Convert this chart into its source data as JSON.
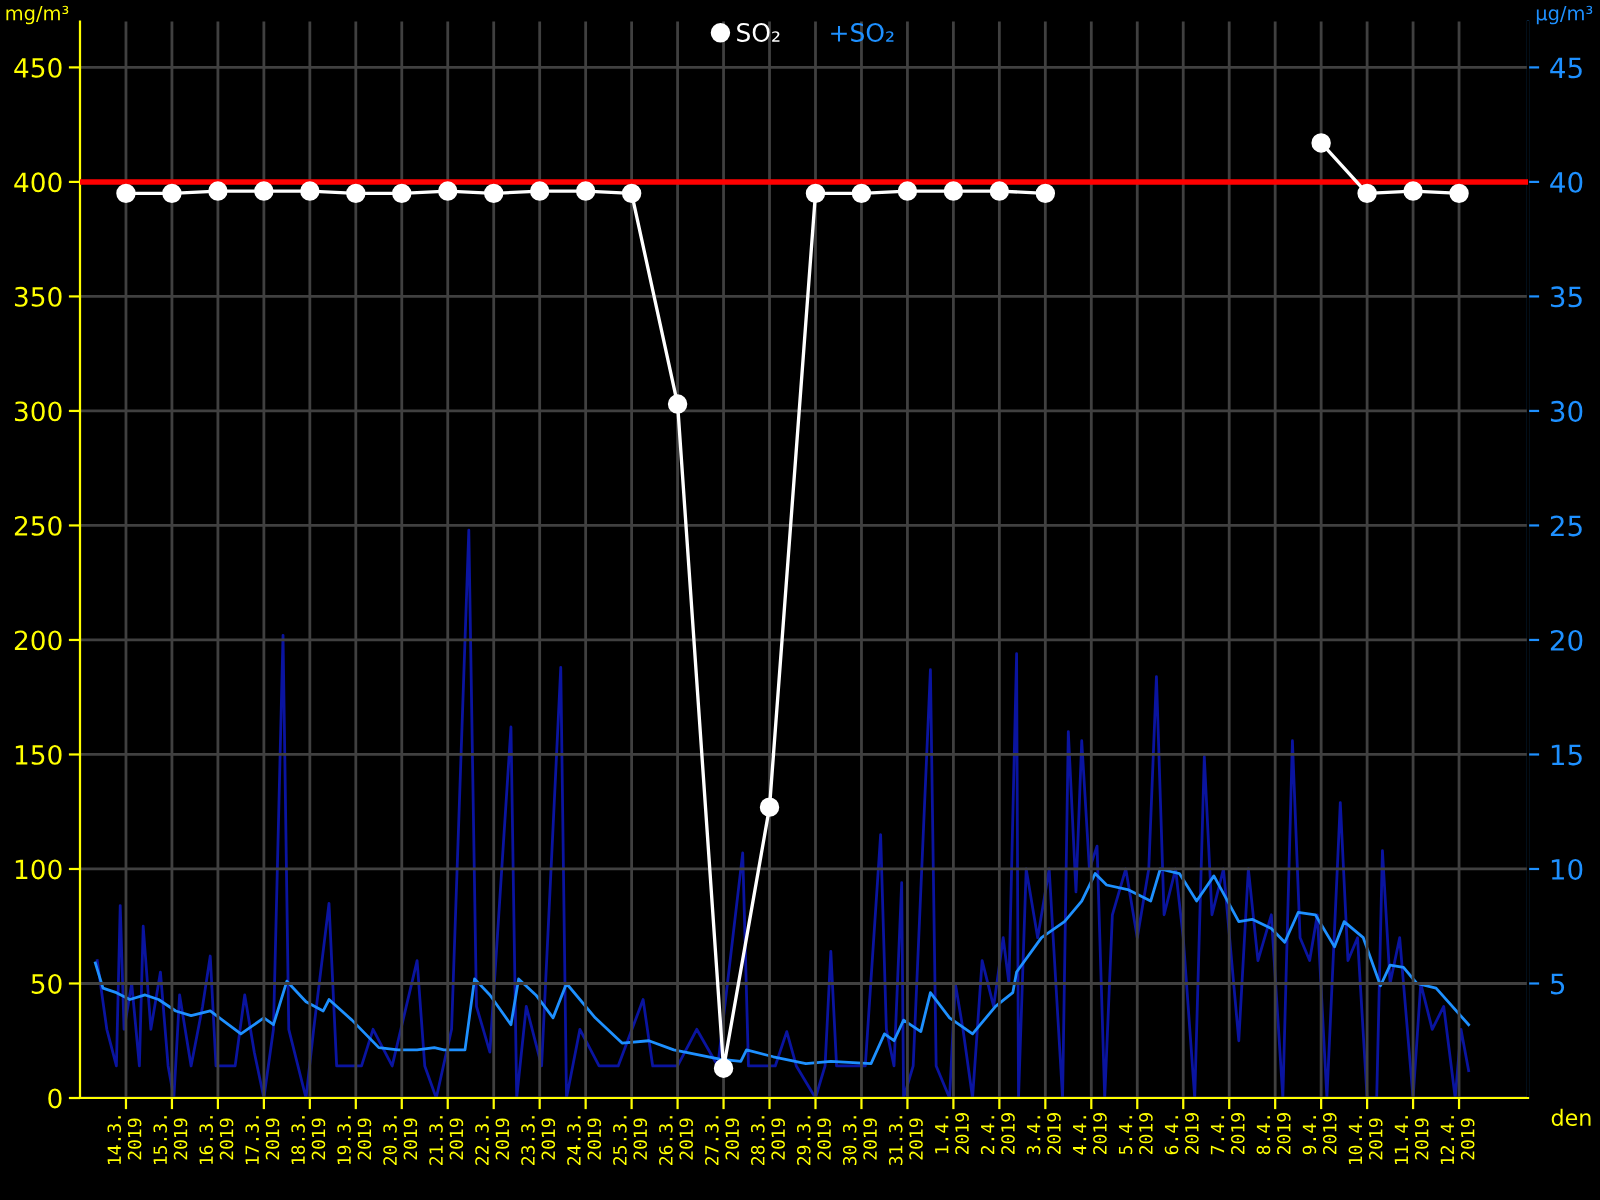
{
  "chart_data": {
    "type": "line",
    "ylabel": "mg/m³",
    "y2label": "µg/m³",
    "xlabel": "den",
    "xlim": [
      "2019-03-13T00:00",
      "2019-04-13T12:00"
    ],
    "ylim": [
      0,
      470
    ],
    "y2lim": [
      0,
      47
    ],
    "yticks": [
      0,
      50,
      100,
      150,
      200,
      250,
      300,
      350,
      400,
      450
    ],
    "y2ticks": [
      5,
      10,
      15,
      20,
      25,
      30,
      35,
      40,
      45
    ],
    "xticks": [
      {
        "value": "2019-03-14",
        "label": "14.3.\n2019"
      },
      {
        "value": "2019-03-15",
        "label": "15.3.\n2019"
      },
      {
        "value": "2019-03-16",
        "label": "16.3.\n2019"
      },
      {
        "value": "2019-03-17",
        "label": "17.3.\n2019"
      },
      {
        "value": "2019-03-18",
        "label": "18.3.\n2019"
      },
      {
        "value": "2019-03-19",
        "label": "19.3.\n2019"
      },
      {
        "value": "2019-03-20",
        "label": "20.3.\n2019"
      },
      {
        "value": "2019-03-21",
        "label": "21.3.\n2019"
      },
      {
        "value": "2019-03-22",
        "label": "22.3.\n2019"
      },
      {
        "value": "2019-03-23",
        "label": "23.3.\n2019"
      },
      {
        "value": "2019-03-24",
        "label": "24.3.\n2019"
      },
      {
        "value": "2019-03-25",
        "label": "25.3.\n2019"
      },
      {
        "value": "2019-03-26",
        "label": "26.3.\n2019"
      },
      {
        "value": "2019-03-27",
        "label": "27.3.\n2019"
      },
      {
        "value": "2019-03-28",
        "label": "28.3.\n2019"
      },
      {
        "value": "2019-03-29",
        "label": "29.3.\n2019"
      },
      {
        "value": "2019-03-30",
        "label": "30.3.\n2019"
      },
      {
        "value": "2019-03-31",
        "label": "31.3.\n2019"
      },
      {
        "value": "2019-04-01",
        "label": "1.4.\n2019"
      },
      {
        "value": "2019-04-02",
        "label": "2.4.\n2019"
      },
      {
        "value": "2019-04-03",
        "label": "3.4.\n2019"
      },
      {
        "value": "2019-04-04",
        "label": "4.4.\n2019"
      },
      {
        "value": "2019-04-05",
        "label": "5.4.\n2019"
      },
      {
        "value": "2019-04-06",
        "label": "6.4.\n2019"
      },
      {
        "value": "2019-04-07",
        "label": "7.4.\n2019"
      },
      {
        "value": "2019-04-08",
        "label": "8.4.\n2019"
      },
      {
        "value": "2019-04-09",
        "label": "9.4.\n2019"
      },
      {
        "value": "2019-04-10",
        "label": "10.4.\n2019"
      },
      {
        "value": "2019-04-11",
        "label": "11.4.\n2019"
      },
      {
        "value": "2019-04-12",
        "label": "12.4.\n2019"
      }
    ],
    "grid": true,
    "legend": "top",
    "line_style": "solid",
    "ref_lines": [
      {
        "axis": "y",
        "value": 400,
        "label": null,
        "color": "#ff0000"
      }
    ],
    "series": [
      {
        "color": "#0a14a0",
        "axis": "y2",
        "marker": "none",
        "x": [
          "2019-03-13T09:00",
          "2019-03-13T14:00",
          "2019-03-13T19:00",
          "2019-03-13T21:00",
          "2019-03-13T23:00",
          "2019-03-14T03:00",
          "2019-03-14T07:00",
          "2019-03-14T09:00",
          "2019-03-14T13:00",
          "2019-03-14T18:00",
          "2019-03-14T22:00",
          "2019-03-15T01:00",
          "2019-03-15T04:00",
          "2019-03-15T10:00",
          "2019-03-15T16:00",
          "2019-03-15T20:00",
          "2019-03-15T23:00",
          "2019-03-16T09:00",
          "2019-03-16T14:00",
          "2019-03-16T19:00",
          "2019-03-17T00:00",
          "2019-03-17T05:00",
          "2019-03-17T10:00",
          "2019-03-17T13:00",
          "2019-03-17T22:00",
          "2019-03-18T02:00",
          "2019-03-18T10:00",
          "2019-03-18T14:00",
          "2019-03-19T03:00",
          "2019-03-19T09:00",
          "2019-03-19T19:00",
          "2019-03-20T08:00",
          "2019-03-20T12:00",
          "2019-03-20T18:00",
          "2019-03-21T02:00",
          "2019-03-21T11:00",
          "2019-03-21T15:00",
          "2019-03-21T22:00",
          "2019-03-22T09:00",
          "2019-03-22T12:00",
          "2019-03-22T17:00",
          "2019-03-23T01:00",
          "2019-03-23T11:00",
          "2019-03-23T14:00",
          "2019-03-23T21:00",
          "2019-03-24T07:00",
          "2019-03-24T17:00",
          "2019-03-25T06:00",
          "2019-03-25T11:00",
          "2019-03-26T00:00",
          "2019-03-26T10:00",
          "2019-03-26T21:00",
          "2019-03-27T10:00",
          "2019-03-27T13:00",
          "2019-03-28T03:00",
          "2019-03-28T09:00",
          "2019-03-28T14:00",
          "2019-03-29T00:00",
          "2019-03-29T05:00",
          "2019-03-29T08:00",
          "2019-03-29T11:00",
          "2019-03-30T02:00",
          "2019-03-30T10:00",
          "2019-03-30T13:00",
          "2019-03-30T17:00",
          "2019-03-30T21:00",
          "2019-03-30T22:00",
          "2019-03-31T03:00",
          "2019-03-31T12:00",
          "2019-03-31T15:00",
          "2019-03-31T22:00",
          "2019-04-01T01:00",
          "2019-04-01T05:00",
          "2019-04-01T10:00",
          "2019-04-01T15:00",
          "2019-04-01T21:00",
          "2019-04-02T02:00",
          "2019-04-02T05:00",
          "2019-04-02T09:00",
          "2019-04-02T10:00",
          "2019-04-02T14:00",
          "2019-04-02T20:00",
          "2019-04-03T02:00",
          "2019-04-03T09:00",
          "2019-04-03T12:00",
          "2019-04-03T16:00",
          "2019-04-03T19:00",
          "2019-04-03T23:00",
          "2019-04-04T03:00",
          "2019-04-04T07:00",
          "2019-04-04T11:00",
          "2019-04-04T18:00",
          "2019-04-05T00:00",
          "2019-04-05T06:00",
          "2019-04-05T10:00",
          "2019-04-05T14:00",
          "2019-04-05T20:00",
          "2019-04-06T00:00",
          "2019-04-06T06:00",
          "2019-04-06T11:00",
          "2019-04-06T15:00",
          "2019-04-06T21:00",
          "2019-04-07T05:00",
          "2019-04-07T10:00",
          "2019-04-07T15:00",
          "2019-04-07T22:00",
          "2019-04-08T04:00",
          "2019-04-08T09:00",
          "2019-04-08T13:00",
          "2019-04-08T18:00",
          "2019-04-08T22:00",
          "2019-04-09T03:00",
          "2019-04-09T10:00",
          "2019-04-09T14:00",
          "2019-04-09T19:00",
          "2019-04-10T00:00",
          "2019-04-10T05:00",
          "2019-04-10T08:00",
          "2019-04-10T12:00",
          "2019-04-10T17:00",
          "2019-04-11T00:00",
          "2019-04-11T04:00",
          "2019-04-11T10:00",
          "2019-04-11T16:00",
          "2019-04-11T22:00",
          "2019-04-12T01:00",
          "2019-04-12T05:00"
        ],
        "values": [
          6,
          3,
          1.4,
          8.4,
          3,
          5,
          1.4,
          7.5,
          3,
          5.5,
          1.4,
          0,
          4.5,
          1.4,
          4,
          6.2,
          1.4,
          1.4,
          4.5,
          2,
          0,
          3,
          20.2,
          3,
          0,
          3,
          8.5,
          1.4,
          1.4,
          3,
          1.4,
          6,
          1.4,
          0,
          3,
          24.8,
          4,
          2,
          16.2,
          0,
          4,
          1.4,
          18.8,
          0,
          3,
          1.4,
          1.4,
          4.3,
          1.4,
          1.4,
          3,
          1.4,
          10.7,
          1.4,
          1.4,
          2.9,
          1.4,
          0,
          1.4,
          6.4,
          1.4,
          1.4,
          11.5,
          3,
          1.4,
          9.4,
          0,
          1.4,
          18.7,
          1.4,
          0,
          5,
          3,
          0,
          6,
          4,
          7,
          5,
          19.4,
          0,
          10,
          7,
          10,
          0,
          16,
          9,
          15.6,
          10,
          11,
          0,
          8,
          10,
          7,
          10,
          18.4,
          8,
          10,
          7,
          0,
          14.9,
          8,
          10,
          2.5,
          10,
          6,
          8,
          0,
          15.6,
          7,
          6,
          8,
          0,
          12.9,
          6,
          7,
          0,
          0,
          10.8,
          5,
          7,
          0,
          5,
          3,
          4,
          0,
          3,
          1.2
        ]
      },
      {
        "name": "+SO₂",
        "color": "#1e90ff",
        "axis": "y2",
        "marker": "none",
        "x": [
          "2019-03-13T08:00",
          "2019-03-13T12:00",
          "2019-03-13T19:00",
          "2019-03-14T02:00",
          "2019-03-14T10:00",
          "2019-03-14T17:00",
          "2019-03-15T02:00",
          "2019-03-15T10:00",
          "2019-03-15T20:00",
          "2019-03-16T12:00",
          "2019-03-17T00:00",
          "2019-03-17T05:00",
          "2019-03-17T12:00",
          "2019-03-17T22:00",
          "2019-03-18T07:00",
          "2019-03-18T10:00",
          "2019-03-18T22:00",
          "2019-03-19T12:00",
          "2019-03-19T22:00",
          "2019-03-20T08:00",
          "2019-03-20T17:00",
          "2019-03-20T22:00",
          "2019-03-21T09:00",
          "2019-03-21T14:00",
          "2019-03-21T22:00",
          "2019-03-22T09:00",
          "2019-03-22T13:00",
          "2019-03-22T22:00",
          "2019-03-23T07:00",
          "2019-03-23T14:00",
          "2019-03-24T05:00",
          "2019-03-24T19:00",
          "2019-03-25T09:00",
          "2019-03-25T22:00",
          "2019-03-26T22:00",
          "2019-03-27T09:00",
          "2019-03-27T12:00",
          "2019-03-28T02:00",
          "2019-03-28T19:00",
          "2019-03-29T08:00",
          "2019-03-30T05:00",
          "2019-03-30T12:00",
          "2019-03-30T17:00",
          "2019-03-30T22:00",
          "2019-03-31T07:00",
          "2019-03-31T12:00",
          "2019-03-31T22:00",
          "2019-04-01T10:00",
          "2019-04-01T22:00",
          "2019-04-02T07:00",
          "2019-04-02T09:00",
          "2019-04-02T22:00",
          "2019-04-03T10:00",
          "2019-04-03T19:00",
          "2019-04-04T02:00",
          "2019-04-04T08:00",
          "2019-04-04T19:00",
          "2019-04-05T07:00",
          "2019-04-05T12:00",
          "2019-04-05T22:00",
          "2019-04-06T07:00",
          "2019-04-06T16:00",
          "2019-04-07T05:00",
          "2019-04-07T12:00",
          "2019-04-07T22:00",
          "2019-04-08T05:00",
          "2019-04-08T12:00",
          "2019-04-08T21:00",
          "2019-04-09T07:00",
          "2019-04-09T12:00",
          "2019-04-09T22:00",
          "2019-04-10T07:00",
          "2019-04-10T12:00",
          "2019-04-10T19:00",
          "2019-04-11T02:00",
          "2019-04-11T12:00",
          "2019-04-12T05:00"
        ],
        "values": [
          5.9,
          4.8,
          4.6,
          4.3,
          4.5,
          4.3,
          3.8,
          3.6,
          3.8,
          2.8,
          3.5,
          3.2,
          5.1,
          4.2,
          3.8,
          4.3,
          3.4,
          2.2,
          2.1,
          2.1,
          2.2,
          2.1,
          2.1,
          5.2,
          4.5,
          3.2,
          5.2,
          4.5,
          3.5,
          5,
          3.5,
          2.4,
          2.5,
          2.1,
          1.7,
          1.6,
          2.1,
          1.8,
          1.5,
          1.6,
          1.5,
          2.8,
          2.5,
          3.4,
          2.9,
          4.6,
          3.5,
          2.8,
          4,
          4.6,
          5.5,
          7,
          7.7,
          8.6,
          9.8,
          9.3,
          9.1,
          8.6,
          10,
          9.8,
          8.6,
          9.7,
          7.7,
          7.8,
          7.4,
          6.8,
          8.1,
          8,
          6.6,
          7.7,
          7,
          4.9,
          5.8,
          5.7,
          5,
          4.8,
          3.2
        ]
      },
      {
        "name": "SO₂",
        "color": "#ffffff",
        "axis": "y",
        "marker": "circle",
        "x": [
          "2019-03-14",
          "2019-03-15",
          "2019-03-16",
          "2019-03-17",
          "2019-03-18",
          "2019-03-19",
          "2019-03-20",
          "2019-03-21",
          "2019-03-22",
          "2019-03-23",
          "2019-03-24",
          "2019-03-25",
          "2019-03-26",
          "2019-03-27",
          "2019-03-28",
          "2019-03-29",
          "2019-03-30",
          "2019-03-31",
          "2019-04-01",
          "2019-04-02",
          "2019-04-03",
          "2019-04-04",
          "2019-04-05",
          "2019-04-06",
          "2019-04-07",
          "2019-04-08",
          "2019-04-09",
          "2019-04-10",
          "2019-04-11",
          "2019-04-12"
        ],
        "values": [
          395,
          395,
          396,
          396,
          396,
          395,
          395,
          396,
          395,
          396,
          396,
          395,
          303,
          13,
          127,
          395,
          395,
          396,
          396,
          396,
          395,
          null,
          null,
          null,
          null,
          null,
          417,
          395,
          396,
          395
        ]
      }
    ]
  }
}
